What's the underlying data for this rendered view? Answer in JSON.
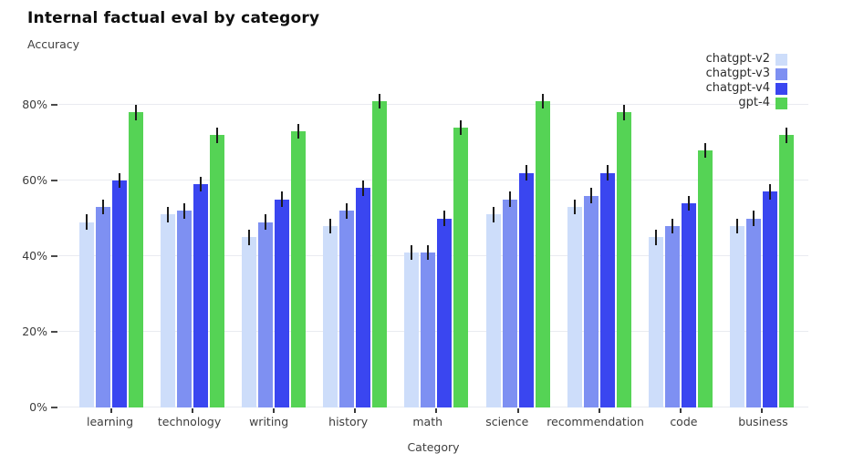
{
  "chart_data": {
    "type": "bar",
    "title": "Internal factual eval by category",
    "subtitle": "Accuracy",
    "xlabel": "Category",
    "ylabel": "Accuracy",
    "categories": [
      "learning",
      "technology",
      "writing",
      "history",
      "math",
      "science",
      "recommendation",
      "code",
      "business"
    ],
    "series": [
      {
        "name": "chatgpt-v2",
        "color": "#cdddfa",
        "values": [
          49,
          51,
          45,
          48,
          41,
          51,
          53,
          45,
          48
        ]
      },
      {
        "name": "chatgpt-v3",
        "color": "#7e90f2",
        "values": [
          53,
          52,
          49,
          52,
          41,
          55,
          56,
          48,
          50
        ]
      },
      {
        "name": "chatgpt-v4",
        "color": "#3a46f0",
        "values": [
          60,
          59,
          55,
          58,
          50,
          62,
          62,
          54,
          57
        ]
      },
      {
        "name": "gpt-4",
        "color": "#55d355",
        "values": [
          78,
          72,
          73,
          81,
          74,
          81,
          78,
          68,
          72
        ]
      }
    ],
    "error_pct": 2,
    "y_ticks": [
      {
        "value": 0,
        "label": "0%"
      },
      {
        "value": 20,
        "label": "20%"
      },
      {
        "value": 40,
        "label": "40%"
      },
      {
        "value": 60,
        "label": "60%"
      },
      {
        "value": 80,
        "label": "80%"
      }
    ],
    "ylim": [
      0,
      86
    ],
    "grid": true,
    "legend_position": "top-right",
    "colors": {
      "background": "#ffffff",
      "gridline": "#e9ebf0",
      "tick_text": "#3d3d3d",
      "title_text": "#0e0e0e",
      "error_bar": "#1c1c1c"
    }
  }
}
